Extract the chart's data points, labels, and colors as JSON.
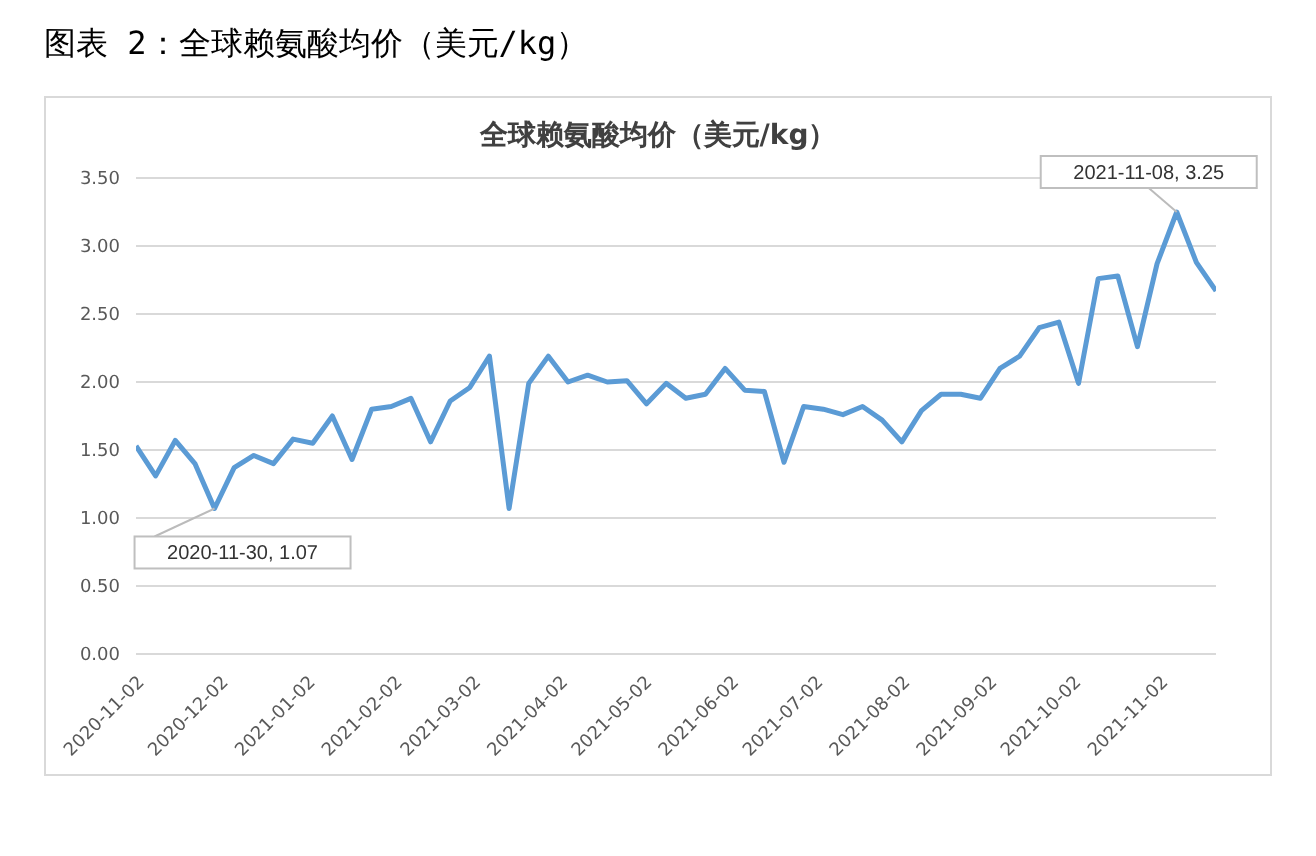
{
  "chart_data": {
    "type": "line",
    "title": "全球赖氨酸均价（美元/kg）",
    "annotations": [
      "图表 2：全球赖氨酸均价（美元/kg）",
      {
        "text": "2020-11-30, 1.07",
        "x": "2020-11-30",
        "y": 1.07
      },
      {
        "text": "2021-11-08, 3.25",
        "x": "2021-11-08",
        "y": 3.25
      }
    ],
    "x": [
      "2020-11-02",
      "2020-11-09",
      "2020-11-16",
      "2020-11-23",
      "2020-11-30",
      "2020-12-07",
      "2020-12-14",
      "2020-12-21",
      "2020-12-28",
      "2021-01-04",
      "2021-01-11",
      "2021-01-18",
      "2021-01-25",
      "2021-02-01",
      "2021-02-08",
      "2021-02-15",
      "2021-02-22",
      "2021-03-01",
      "2021-03-08",
      "2021-03-15",
      "2021-03-22",
      "2021-03-29",
      "2021-04-05",
      "2021-04-12",
      "2021-04-19",
      "2021-04-26",
      "2021-05-03",
      "2021-05-10",
      "2021-05-17",
      "2021-05-24",
      "2021-05-31",
      "2021-06-07",
      "2021-06-14",
      "2021-06-21",
      "2021-06-28",
      "2021-07-05",
      "2021-07-12",
      "2021-07-19",
      "2021-07-26",
      "2021-08-02",
      "2021-08-09",
      "2021-08-16",
      "2021-08-23",
      "2021-08-30",
      "2021-09-06",
      "2021-09-13",
      "2021-09-20",
      "2021-09-27",
      "2021-10-04",
      "2021-10-11",
      "2021-10-18",
      "2021-10-25",
      "2021-11-01",
      "2021-11-08",
      "2021-11-15",
      "2021-11-22"
    ],
    "series": [
      {
        "color": "#5b9bd5",
        "values": [
          1.53,
          1.31,
          1.57,
          1.4,
          1.07,
          1.37,
          1.46,
          1.4,
          1.58,
          1.55,
          1.75,
          1.43,
          1.8,
          1.82,
          1.88,
          1.56,
          1.86,
          1.96,
          2.19,
          1.07,
          1.99,
          2.19,
          2.0,
          2.05,
          2.0,
          2.01,
          1.84,
          1.99,
          1.88,
          1.91,
          2.1,
          1.94,
          1.93,
          1.41,
          1.82,
          1.8,
          1.76,
          1.82,
          1.72,
          1.56,
          1.79,
          1.91,
          1.91,
          1.88,
          2.1,
          2.19,
          2.4,
          2.44,
          1.99,
          2.76,
          2.78,
          2.26,
          2.87,
          3.25,
          2.88,
          2.67
        ]
      }
    ],
    "xlim": [
      "2020-11-02",
      "2021-11-22"
    ],
    "xticks": [
      "2020-11-02",
      "2020-12-02",
      "2021-01-02",
      "2021-02-02",
      "2021-03-02",
      "2021-04-02",
      "2021-05-02",
      "2021-06-02",
      "2021-07-02",
      "2021-08-02",
      "2021-09-02",
      "2021-10-02",
      "2021-11-02"
    ],
    "ylim": [
      0,
      3.5
    ],
    "yticks": [
      {
        "value": 0,
        "label": "0.00"
      },
      {
        "value": 0.5,
        "label": "0.50"
      },
      {
        "value": 1,
        "label": "1.00"
      },
      {
        "value": 1.5,
        "label": "1.50"
      },
      {
        "value": 2,
        "label": "2.00"
      },
      {
        "value": 2.5,
        "label": "2.50"
      },
      {
        "value": 3,
        "label": "3.00"
      },
      {
        "value": 3.5,
        "label": "3.50"
      }
    ],
    "grid": "y",
    "marker": "none",
    "line_style": "solid"
  }
}
